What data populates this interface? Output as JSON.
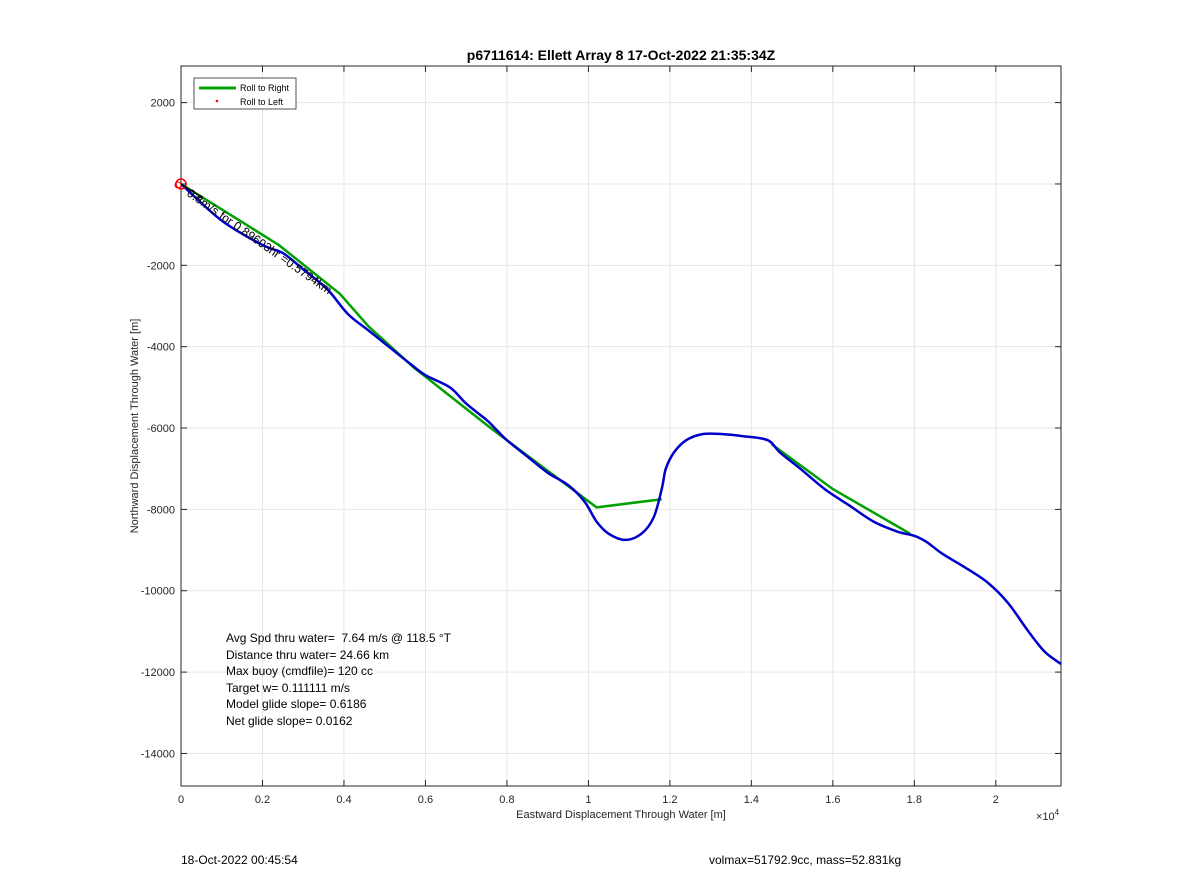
{
  "chart_data": {
    "type": "line",
    "title": "p6711614: Ellett Array 8 17-Oct-2022 21:35:34Z",
    "xlabel": "Eastward Displacement Through Water [m]",
    "ylabel": "Northward Displacement Through Water [m]",
    "x_exponent_label": "×10",
    "x_exponent_power": "4",
    "xlim": [
      0,
      21600
    ],
    "ylim": [
      -14800,
      2900
    ],
    "x_ticks": [
      0,
      2000,
      4000,
      6000,
      8000,
      10000,
      12000,
      14000,
      16000,
      18000,
      20000
    ],
    "x_tick_labels": [
      "0",
      "0.2",
      "0.4",
      "0.6",
      "0.8",
      "1",
      "1.2",
      "1.4",
      "1.6",
      "1.8",
      "2"
    ],
    "y_ticks": [
      2000,
      0,
      -2000,
      -4000,
      -6000,
      -8000,
      -10000,
      -12000,
      -14000
    ],
    "y_tick_labels": [
      "2000",
      "",
      "-2000",
      "-4000",
      "-6000",
      "-8000",
      "-10000",
      "-12000",
      "-14000"
    ],
    "grid": true,
    "legend_position": "top-left",
    "legend": [
      {
        "label": "Roll to Right",
        "color": "#00a000",
        "style": "line"
      },
      {
        "label": "Roll to Left",
        "color": "#ff0000",
        "style": "dot"
      }
    ],
    "series": [
      {
        "color": "#00a000",
        "x": [
          0,
          2400,
          3900,
          4600,
          5700,
          7600,
          10200,
          11800
        ],
        "y": [
          0,
          -1500,
          -2700,
          -3500,
          -4500,
          -6000,
          -7950,
          -7750
        ]
      },
      {
        "color": "#00a000",
        "x": [
          14500,
          16000,
          17900
        ],
        "y": [
          -6400,
          -7500,
          -8600
        ]
      },
      {
        "color": "#0000cc",
        "x": [
          0,
          1000,
          2000,
          2500,
          3000,
          3600,
          4100,
          4600,
          5100,
          5600,
          6000,
          6600,
          7000,
          7500,
          7700,
          8000,
          8500,
          9000,
          9500,
          9900,
          10200,
          10500,
          10900,
          11300,
          11600,
          11800,
          11900,
          12100,
          12400,
          12800,
          13300,
          13800,
          14400,
          14700,
          15200,
          15800,
          16400,
          17000,
          17600,
          18000,
          18300,
          18700,
          19200,
          19800,
          20300,
          20800,
          21200,
          21600
        ],
        "y": [
          0,
          -900,
          -1500,
          -1700,
          -2100,
          -2600,
          -3200,
          -3600,
          -4000,
          -4400,
          -4700,
          -5000,
          -5400,
          -5800,
          -6000,
          -6300,
          -6700,
          -7100,
          -7400,
          -7800,
          -8300,
          -8600,
          -8750,
          -8600,
          -8200,
          -7500,
          -7000,
          -6600,
          -6300,
          -6150,
          -6150,
          -6200,
          -6300,
          -6600,
          -7000,
          -7500,
          -7900,
          -8300,
          -8550,
          -8650,
          -8800,
          -9100,
          -9400,
          -9800,
          -10300,
          -11000,
          -11500,
          -11800
        ]
      }
    ],
    "start_marker": {
      "x": 0,
      "y": 0,
      "color": "#ff0000"
    },
    "annotation": "0.8m/s for 0.89603hr =0.5794km",
    "stats": [
      "Avg Spd thru water=  7.64 m/s @ 118.5 °T",
      "Distance thru water= 24.66 km",
      "Max buoy (cmdfile)= 120 cc",
      "Target w= 0.111111 m/s",
      "Model glide slope= 0.6186",
      "Net glide slope= 0.0162"
    ]
  },
  "footer": {
    "date": "18-Oct-2022 00:45:54",
    "vol_mass": "volmax=51792.9cc, mass=52.831kg"
  }
}
